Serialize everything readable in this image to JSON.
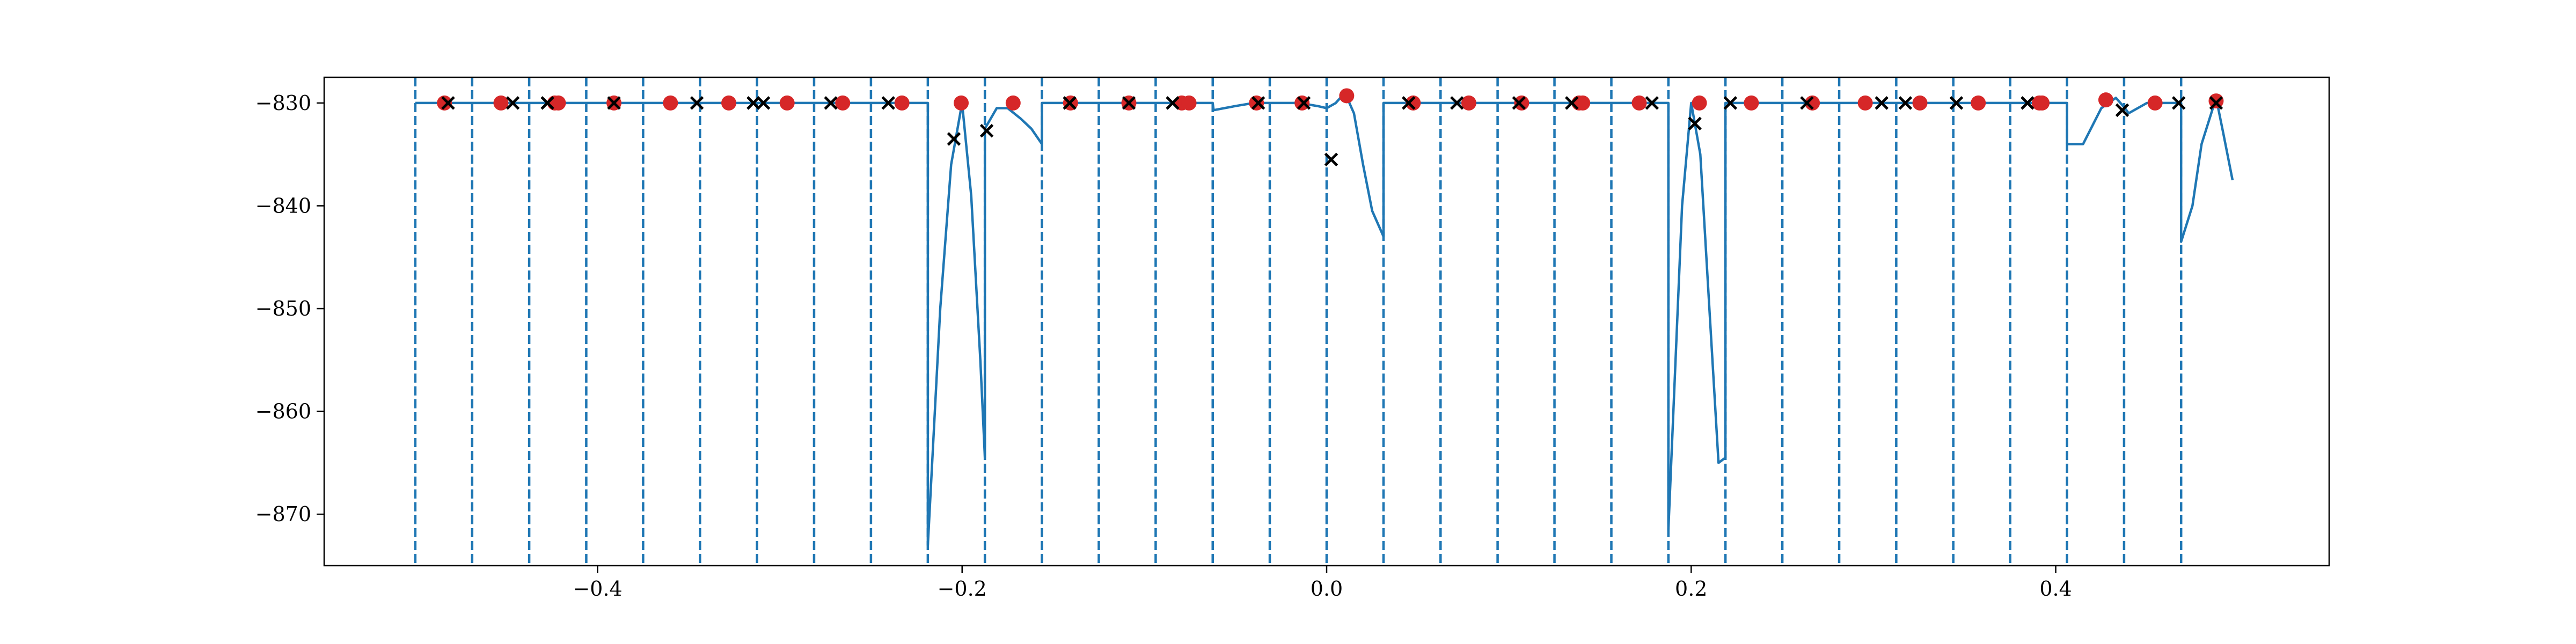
{
  "chart_data": {
    "type": "line",
    "title": "",
    "xlabel": "",
    "ylabel": "",
    "xlim": [
      -0.55,
      0.55
    ],
    "ylim": [
      -875,
      -827.5
    ],
    "grid": false,
    "legend": "none",
    "colors": {
      "line": "#1f77b4",
      "dot": "#d62728",
      "cross": "#000000",
      "boundary": "#1f77b4"
    },
    "xticks": [
      {
        "value": -0.4,
        "label": "−0.4"
      },
      {
        "value": -0.2,
        "label": "−0.2"
      },
      {
        "value": 0.0,
        "label": "0.0"
      },
      {
        "value": 0.2,
        "label": "0.2"
      },
      {
        "value": 0.4,
        "label": "0.4"
      }
    ],
    "yticks": [
      {
        "value": -830,
        "label": "−830"
      },
      {
        "value": -840,
        "label": "−840"
      },
      {
        "value": -850,
        "label": "−850"
      },
      {
        "value": -860,
        "label": "−860"
      },
      {
        "value": -870,
        "label": "−870"
      }
    ],
    "boundaries": [
      -0.5,
      -0.4688,
      -0.4375,
      -0.4062,
      -0.375,
      -0.3438,
      -0.3125,
      -0.2812,
      -0.25,
      -0.2188,
      -0.1875,
      -0.1562,
      -0.125,
      -0.0938,
      -0.0625,
      -0.0312,
      0.0,
      0.0312,
      0.0625,
      0.0938,
      0.125,
      0.1562,
      0.1875,
      0.2188,
      0.25,
      0.2812,
      0.3125,
      0.3438,
      0.375,
      0.4062,
      0.4375,
      0.4688
    ],
    "series": [
      {
        "kind": "line",
        "x": [
          -0.5,
          -0.2188,
          -0.2188,
          -0.212,
          -0.206,
          -0.2,
          -0.195,
          -0.19,
          -0.1875,
          -0.1875,
          -0.181,
          -0.175,
          -0.168,
          -0.162,
          -0.1562,
          -0.1562,
          -0.0625,
          -0.062,
          -0.05,
          -0.04,
          -0.0312,
          -0.0312,
          -0.015,
          -0.005,
          0.0,
          0.005,
          0.01,
          0.015,
          0.02,
          0.025,
          0.03,
          0.0312,
          0.0312,
          0.1875,
          0.1875,
          0.195,
          0.2,
          0.205,
          0.21,
          0.215,
          0.2188,
          0.2188,
          0.4062,
          0.4062,
          0.415,
          0.425,
          0.433,
          0.438,
          0.44,
          0.45,
          0.4688,
          0.4688,
          0.475,
          0.48,
          0.488,
          0.492,
          0.497
        ],
        "y": [
          -830,
          -830,
          -873,
          -850,
          -836,
          -830,
          -839,
          -855,
          -864.5,
          -832.5,
          -830.5,
          -830.5,
          -831.5,
          -832.5,
          -834,
          -830,
          -830,
          -830.7,
          -830.3,
          -830,
          -830,
          -830,
          -830,
          -830.3,
          -830.5,
          -830,
          -829,
          -831,
          -836,
          -840.5,
          -842.5,
          -843,
          -830,
          -830,
          -871.5,
          -840,
          -830,
          -835,
          -850,
          -865,
          -864.5,
          -830,
          -830,
          -834,
          -834,
          -830.5,
          -829.5,
          -830.5,
          -831,
          -830,
          -830,
          -843.5,
          -840,
          -834,
          -829.5,
          -833,
          -837.5
        ]
      },
      {
        "kind": "scatter",
        "marker": "dot",
        "x": [
          -0.484,
          -0.453,
          -0.4235,
          -0.4215,
          -0.391,
          -0.36,
          -0.328,
          -0.296,
          -0.2655,
          -0.233,
          -0.2005,
          -0.172,
          -0.1405,
          -0.1085,
          -0.0795,
          -0.0755,
          -0.0385,
          -0.0135,
          0.011,
          0.0475,
          0.078,
          0.107,
          0.1385,
          0.1405,
          0.1715,
          0.2045,
          0.233,
          0.2665,
          0.2955,
          0.3255,
          0.3575,
          0.391,
          0.3925,
          0.4275,
          0.4545,
          0.488
        ],
        "y": [
          -830,
          -830,
          -830,
          -830,
          -830,
          -830,
          -830,
          -830,
          -830,
          -830,
          -830,
          -830,
          -830,
          -830,
          -830,
          -830,
          -830,
          -830,
          -829.3,
          -830,
          -830,
          -830,
          -830,
          -830,
          -830,
          -830,
          -830,
          -830,
          -830,
          -830,
          -830,
          -830,
          -830,
          -829.7,
          -830,
          -829.8
        ]
      },
      {
        "kind": "scatter",
        "marker": "cross",
        "x": [
          -0.482,
          -0.4465,
          -0.4275,
          -0.391,
          -0.3455,
          -0.3145,
          -0.309,
          -0.272,
          -0.2405,
          -0.2045,
          -0.1865,
          -0.141,
          -0.1085,
          -0.0845,
          -0.0375,
          -0.0125,
          0.0025,
          0.045,
          0.0715,
          0.1055,
          0.1345,
          0.1785,
          0.202,
          0.2215,
          0.2635,
          0.3045,
          0.3175,
          0.3455,
          0.3845,
          0.4365,
          0.4675,
          0.488
        ],
        "y": [
          -830,
          -830,
          -830,
          -830,
          -830,
          -830,
          -830,
          -830,
          -830,
          -833.5,
          -832.7,
          -830,
          -830,
          -830,
          -830,
          -830,
          -835.5,
          -830,
          -830,
          -830,
          -830,
          -830,
          -832,
          -830,
          -830,
          -830,
          -830,
          -830,
          -830,
          -830.7,
          -830,
          -830
        ]
      }
    ]
  }
}
